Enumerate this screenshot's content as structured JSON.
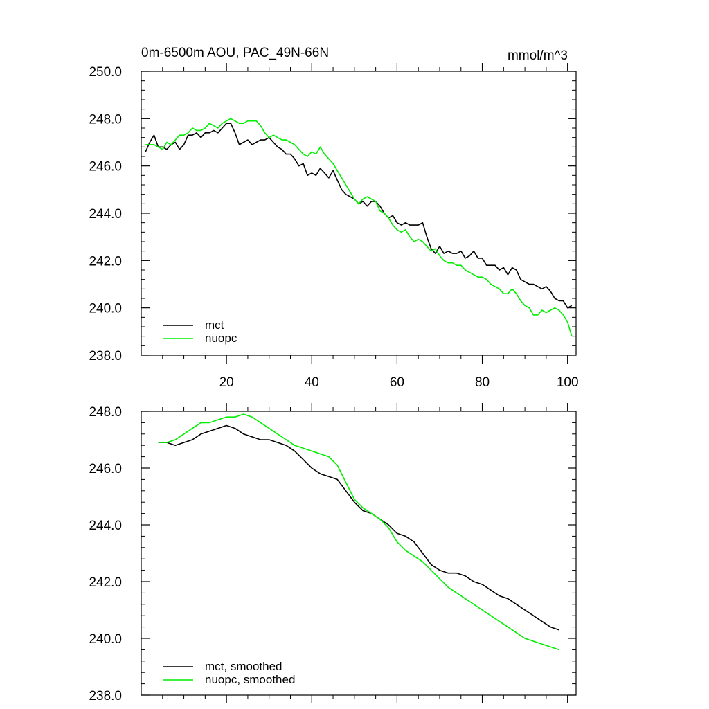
{
  "chart_data": [
    {
      "type": "line",
      "title": "0m-6500m AOU, PAC_49N-66N",
      "units": "mmol/m^3",
      "xlabel": "",
      "ylabel": "",
      "xlim": [
        0,
        102
      ],
      "ylim": [
        238,
        250
      ],
      "x_ticks": [
        20,
        40,
        60,
        80,
        100
      ],
      "x_tick_labels": [
        "20",
        "40",
        "60",
        "80",
        "100"
      ],
      "y_ticks": [
        238,
        240,
        242,
        244,
        246,
        248,
        250
      ],
      "y_tick_labels": [
        "238.0",
        "240.0",
        "242.0",
        "244.0",
        "246.0",
        "248.0",
        "250.0"
      ],
      "legend_position": "bottom-left",
      "grid": false,
      "x": [
        1,
        2,
        3,
        4,
        5,
        6,
        7,
        8,
        9,
        10,
        11,
        12,
        13,
        14,
        15,
        16,
        17,
        18,
        19,
        20,
        21,
        22,
        23,
        24,
        25,
        26,
        27,
        28,
        29,
        30,
        31,
        32,
        33,
        34,
        35,
        36,
        37,
        38,
        39,
        40,
        41,
        42,
        43,
        44,
        45,
        46,
        47,
        48,
        49,
        50,
        51,
        52,
        53,
        54,
        55,
        56,
        57,
        58,
        59,
        60,
        61,
        62,
        63,
        64,
        65,
        66,
        67,
        68,
        69,
        70,
        71,
        72,
        73,
        74,
        75,
        76,
        77,
        78,
        79,
        80,
        81,
        82,
        83,
        84,
        85,
        86,
        87,
        88,
        89,
        90,
        91,
        92,
        93,
        94,
        95,
        96,
        97,
        98,
        99,
        100,
        101
      ],
      "series": [
        {
          "name": "mct",
          "color": "#000000",
          "values": [
            246.6,
            247.0,
            247.3,
            246.8,
            246.8,
            246.7,
            246.9,
            247.0,
            246.7,
            246.9,
            247.3,
            247.3,
            247.4,
            247.2,
            247.4,
            247.4,
            247.5,
            247.4,
            247.6,
            247.8,
            247.8,
            247.4,
            246.9,
            247.0,
            247.1,
            246.9,
            247.0,
            247.1,
            247.1,
            247.2,
            247.0,
            246.8,
            246.7,
            246.5,
            246.5,
            246.3,
            246.0,
            246.1,
            245.6,
            245.7,
            245.6,
            245.9,
            245.7,
            245.5,
            245.8,
            245.4,
            245.0,
            244.8,
            244.7,
            244.6,
            244.4,
            244.5,
            244.3,
            244.5,
            244.5,
            244.3,
            244.0,
            243.8,
            243.9,
            243.6,
            243.5,
            243.6,
            243.5,
            243.5,
            243.5,
            243.6,
            243.0,
            242.5,
            242.3,
            242.6,
            242.3,
            242.4,
            242.3,
            242.3,
            242.4,
            242.1,
            242.2,
            242.4,
            242.1,
            242.1,
            241.8,
            241.8,
            241.8,
            241.6,
            241.7,
            241.4,
            241.7,
            241.6,
            241.2,
            241.1,
            241.0,
            241.0,
            240.9,
            240.8,
            240.9,
            240.7,
            240.4,
            240.3,
            240.3,
            240.0,
            240.1
          ]
        },
        {
          "name": "nuopc",
          "color": "#00ee00",
          "values": [
            246.9,
            246.9,
            246.9,
            246.8,
            246.7,
            247.0,
            246.9,
            247.1,
            247.3,
            247.3,
            247.4,
            247.6,
            247.5,
            247.5,
            247.6,
            247.8,
            247.7,
            247.6,
            247.8,
            247.9,
            248.0,
            247.9,
            247.8,
            247.8,
            247.9,
            247.9,
            247.9,
            247.7,
            247.4,
            247.2,
            247.3,
            247.2,
            247.1,
            247.1,
            247.0,
            246.9,
            246.7,
            246.5,
            246.4,
            246.6,
            246.5,
            246.8,
            246.5,
            246.3,
            246.1,
            245.8,
            245.5,
            245.2,
            244.9,
            244.6,
            244.4,
            244.6,
            244.7,
            244.6,
            244.5,
            244.1,
            244.0,
            243.8,
            243.5,
            243.3,
            243.2,
            243.3,
            243.0,
            242.8,
            242.9,
            242.8,
            242.6,
            242.4,
            242.5,
            242.2,
            242.0,
            241.9,
            241.9,
            241.8,
            241.8,
            241.6,
            241.5,
            241.4,
            241.3,
            241.3,
            241.2,
            241.0,
            240.9,
            240.8,
            240.6,
            240.6,
            240.8,
            240.6,
            240.3,
            240.1,
            240.0,
            239.7,
            239.7,
            239.9,
            239.8,
            239.9,
            240.0,
            239.9,
            239.7,
            239.4,
            238.8
          ]
        }
      ]
    },
    {
      "type": "line",
      "title": "",
      "xlabel": "",
      "ylabel": "",
      "xlim": [
        0,
        102
      ],
      "ylim": [
        238,
        248
      ],
      "x_ticks": [
        20,
        40,
        60,
        80,
        100
      ],
      "y_ticks": [
        238,
        240,
        242,
        244,
        246,
        248
      ],
      "y_tick_labels": [
        "238.0",
        "240.0",
        "242.0",
        "244.0",
        "246.0",
        "248.0"
      ],
      "legend_position": "bottom-left",
      "grid": false,
      "x": [
        4,
        6,
        8,
        10,
        12,
        14,
        16,
        18,
        20,
        22,
        24,
        26,
        28,
        30,
        32,
        34,
        36,
        38,
        40,
        42,
        44,
        46,
        48,
        50,
        52,
        54,
        56,
        58,
        60,
        62,
        64,
        66,
        68,
        70,
        72,
        74,
        76,
        78,
        80,
        82,
        84,
        86,
        88,
        90,
        92,
        94,
        96,
        98
      ],
      "series": [
        {
          "name": "mct, smoothed",
          "color": "#000000",
          "values": [
            246.9,
            246.9,
            246.8,
            246.9,
            247.0,
            247.2,
            247.3,
            247.4,
            247.5,
            247.4,
            247.2,
            247.1,
            247.0,
            247.0,
            246.9,
            246.8,
            246.6,
            246.3,
            246.0,
            245.8,
            245.7,
            245.6,
            245.2,
            244.8,
            244.5,
            244.4,
            244.2,
            244.0,
            243.7,
            243.6,
            243.4,
            243.0,
            242.6,
            242.4,
            242.3,
            242.3,
            242.2,
            242.0,
            241.9,
            241.7,
            241.5,
            241.4,
            241.2,
            241.0,
            240.8,
            240.6,
            240.4,
            240.3
          ]
        },
        {
          "name": "nuopc, smoothed",
          "color": "#00ee00",
          "values": [
            246.9,
            246.9,
            247.0,
            247.2,
            247.4,
            247.6,
            247.6,
            247.7,
            247.8,
            247.8,
            247.9,
            247.8,
            247.6,
            247.4,
            247.2,
            247.0,
            246.8,
            246.7,
            246.6,
            246.5,
            246.4,
            246.1,
            245.5,
            244.9,
            244.6,
            244.4,
            244.2,
            243.9,
            243.4,
            243.1,
            242.9,
            242.7,
            242.4,
            242.1,
            241.8,
            241.6,
            241.4,
            241.2,
            241.0,
            240.8,
            240.6,
            240.4,
            240.2,
            240.0,
            239.9,
            239.8,
            239.7,
            239.6
          ]
        }
      ]
    }
  ]
}
